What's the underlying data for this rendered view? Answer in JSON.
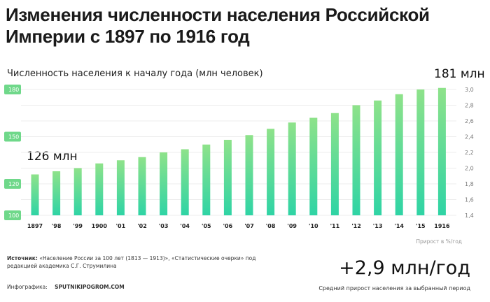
{
  "header": {
    "title": "Изменения численности населения Российской Империи с 1897 по 1916 год",
    "subtitle": "Численность населения к началу года (млн человек)"
  },
  "annotations": {
    "start_value": "126 млн",
    "end_value": "181 млн"
  },
  "footer": {
    "source_label": "Источник:",
    "source_text": "«Население России за 100 лет (1813 — 1913)», «Статистические очерки» под редакцией академика С.Г. Струмилина",
    "credit_label": "Инфографика:",
    "credit_site": "SPUTNIKIPOGROM.COM",
    "big_stat": "+2,9 млн/год",
    "big_stat_caption": "Средний прирост населения за выбранный период",
    "rate_axis_label": "Прирост в %/год"
  },
  "colors": {
    "bar_top": "#8ee28a",
    "bar_bottom": "#2fd4a5",
    "tick_badge": "#6fd88a"
  },
  "chart_data": {
    "type": "bar",
    "categories": [
      "1897",
      "'98",
      "'99",
      "1900",
      "'01",
      "'02",
      "'03",
      "'04",
      "'05",
      "'06",
      "'07",
      "'08",
      "'09",
      "'10",
      "'11",
      "'12",
      "'13",
      "'14",
      "'15",
      "1916"
    ],
    "series": [
      {
        "values": [
          126,
          128,
          130,
          133,
          135,
          137,
          140,
          142,
          145,
          148,
          151,
          155,
          159,
          162,
          165,
          170,
          173,
          177,
          180,
          181
        ]
      }
    ],
    "ylim": [
      100,
      180
    ],
    "yticks": [
      100,
      120,
      150,
      180
    ],
    "ylim_right": [
      1.4,
      3.0
    ],
    "yticks_right": [
      "1,4",
      "1,6",
      "1,8",
      "2,0",
      "2,2",
      "2,4",
      "2,6",
      "2,8",
      "3,0"
    ],
    "grid": true,
    "legend": "none"
  }
}
